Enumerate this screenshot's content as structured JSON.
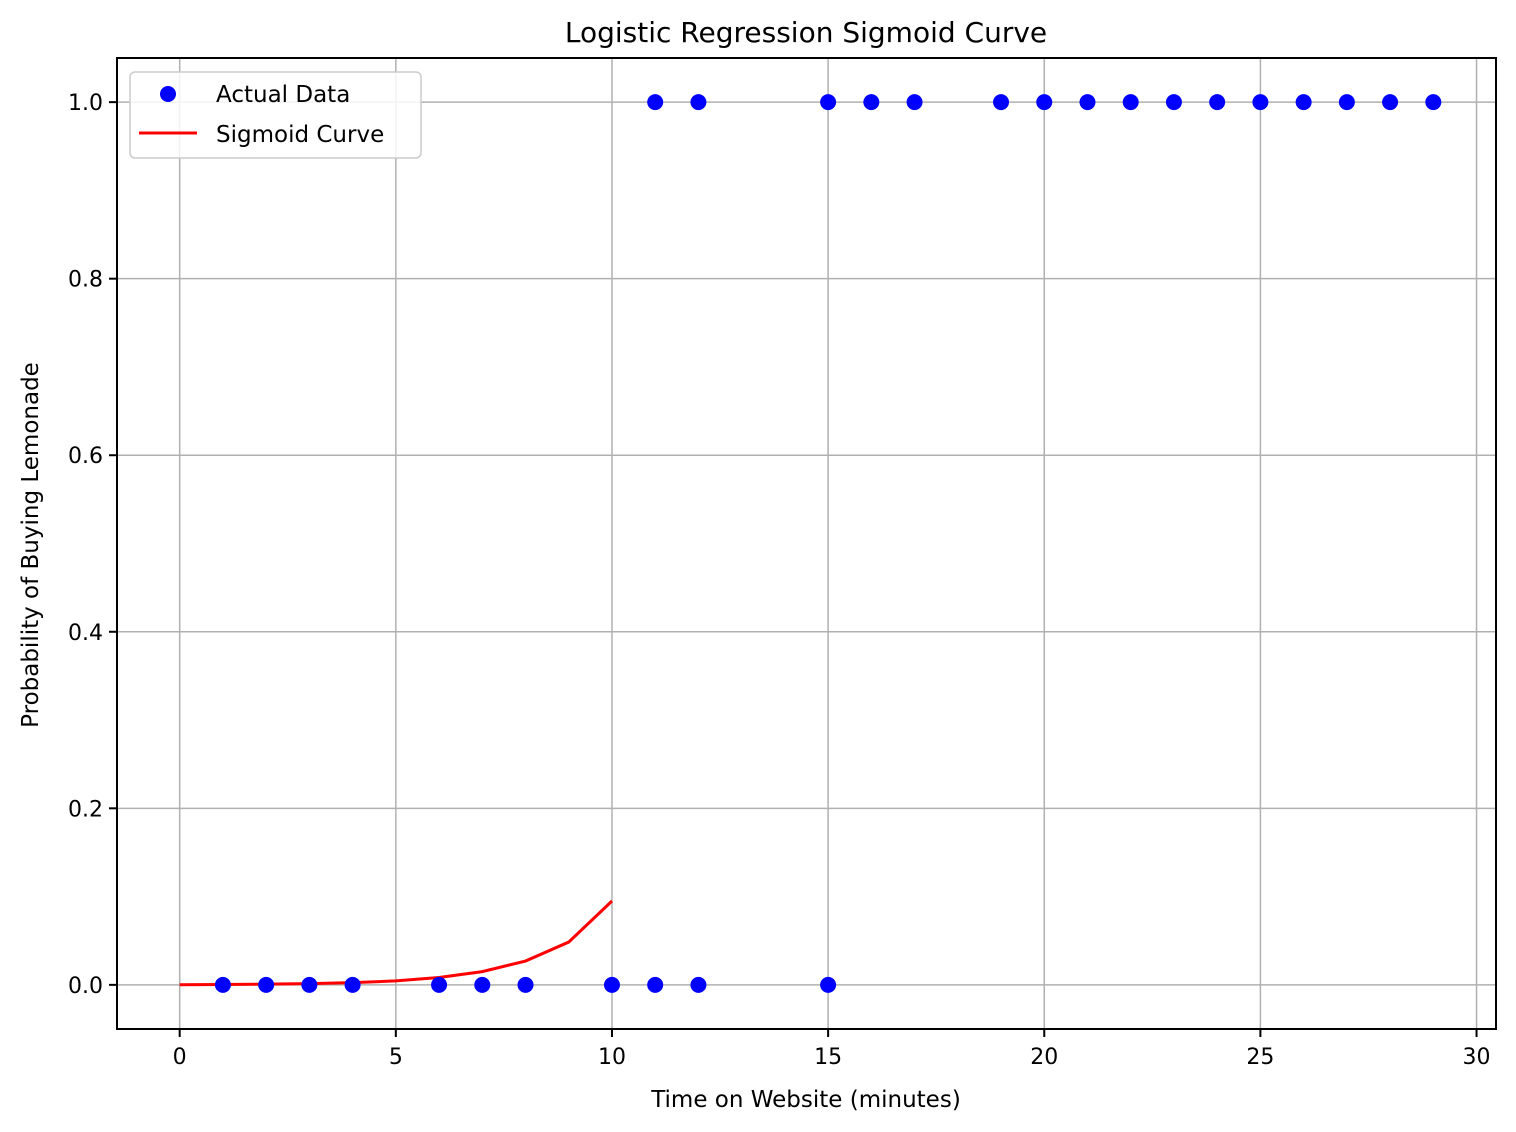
{
  "chart_data": {
    "type": "scatter",
    "title": "Logistic Regression Sigmoid Curve",
    "xlabel": "Time on Website (minutes)",
    "ylabel": "Probability of Buying Lemonade",
    "xlim": [
      -1.45,
      30.45
    ],
    "ylim": [
      -0.05,
      1.05
    ],
    "xticks": [
      0,
      5,
      10,
      15,
      20,
      25,
      30
    ],
    "yticks": [
      0.0,
      0.2,
      0.4,
      0.6,
      0.8,
      1.0
    ],
    "xtick_labels": [
      "0",
      "5",
      "10",
      "15",
      "20",
      "25",
      "30"
    ],
    "ytick_labels": [
      "0.0",
      "0.2",
      "0.4",
      "0.6",
      "0.8",
      "1.0"
    ],
    "grid": true,
    "legend_position": "top-left",
    "series": [
      {
        "name": "Actual Data",
        "kind": "scatter",
        "color": "#0000ff",
        "points": [
          {
            "x": 1,
            "y": 0
          },
          {
            "x": 2,
            "y": 0
          },
          {
            "x": 3,
            "y": 0
          },
          {
            "x": 4,
            "y": 0
          },
          {
            "x": 6,
            "y": 0
          },
          {
            "x": 7,
            "y": 0
          },
          {
            "x": 8,
            "y": 0
          },
          {
            "x": 10,
            "y": 0
          },
          {
            "x": 11,
            "y": 0
          },
          {
            "x": 12,
            "y": 0
          },
          {
            "x": 15,
            "y": 0
          },
          {
            "x": 11,
            "y": 1
          },
          {
            "x": 12,
            "y": 1
          },
          {
            "x": 15,
            "y": 1
          },
          {
            "x": 16,
            "y": 1
          },
          {
            "x": 17,
            "y": 1
          },
          {
            "x": 19,
            "y": 1
          },
          {
            "x": 20,
            "y": 1
          },
          {
            "x": 21,
            "y": 1
          },
          {
            "x": 22,
            "y": 1
          },
          {
            "x": 23,
            "y": 1
          },
          {
            "x": 24,
            "y": 1
          },
          {
            "x": 25,
            "y": 1
          },
          {
            "x": 26,
            "y": 1
          },
          {
            "x": 27,
            "y": 1
          },
          {
            "x": 28,
            "y": 1
          },
          {
            "x": 29,
            "y": 1
          }
        ]
      },
      {
        "name": "Sigmoid Curve",
        "kind": "line",
        "color": "#ff0000",
        "points": [
          {
            "x": 0,
            "y": 0.0002
          },
          {
            "x": 1,
            "y": 0.0004
          },
          {
            "x": 2,
            "y": 0.0008
          },
          {
            "x": 3,
            "y": 0.0014
          },
          {
            "x": 4,
            "y": 0.0025
          },
          {
            "x": 5,
            "y": 0.0045
          },
          {
            "x": 6,
            "y": 0.0083
          },
          {
            "x": 7,
            "y": 0.015
          },
          {
            "x": 8,
            "y": 0.027
          },
          {
            "x": 9,
            "y": 0.0485
          },
          {
            "x": 10,
            "y": 0.095
          }
        ]
      }
    ]
  }
}
